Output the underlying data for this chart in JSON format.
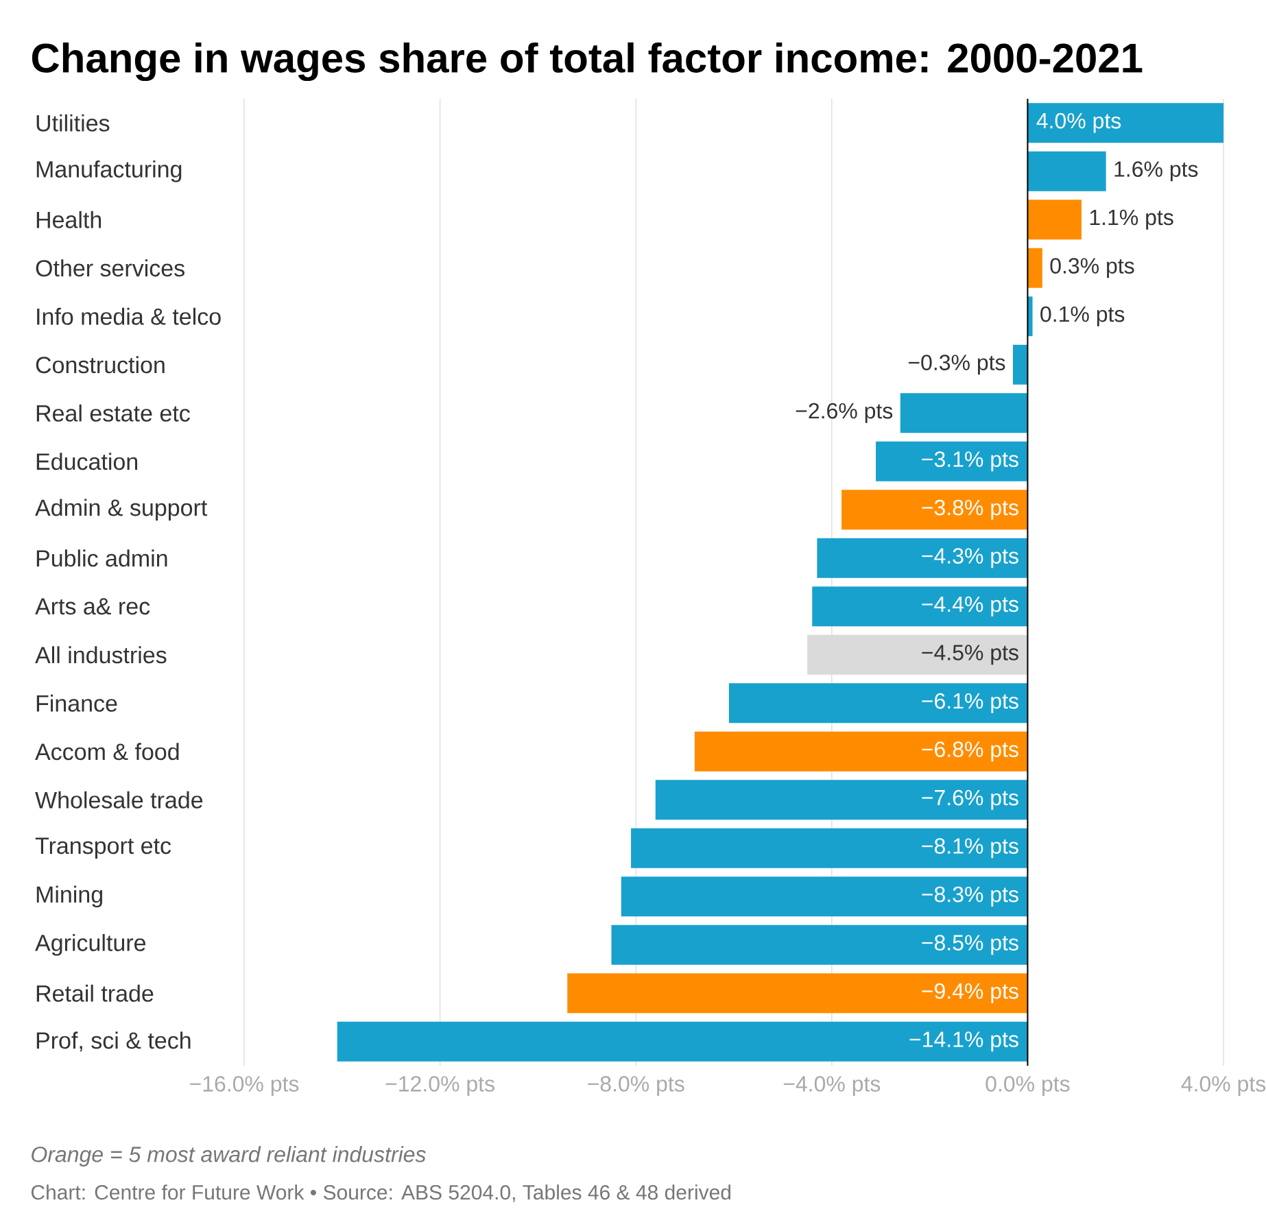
{
  "chart_data": {
    "type": "bar",
    "orientation": "horizontal",
    "title": "Change in wages share of total factor income: 2000-2021",
    "categories": [
      "Utilities",
      "Manufacturing",
      "Health",
      "Other services",
      "Info media & telco",
      "Construction",
      "Real estate etc",
      "Education",
      "Admin & support",
      "Public admin",
      "Arts a& rec",
      "All industries",
      "Finance",
      "Accom & food",
      "Wholesale trade",
      "Transport etc",
      "Mining",
      "Agriculture",
      "Retail trade",
      "Prof, sci & tech"
    ],
    "values": [
      4.0,
      1.6,
      1.1,
      0.3,
      0.1,
      -0.3,
      -2.6,
      -3.1,
      -3.8,
      -4.3,
      -4.4,
      -4.5,
      -6.1,
      -6.8,
      -7.6,
      -8.1,
      -8.3,
      -8.5,
      -9.4,
      -14.1
    ],
    "value_labels": [
      "4.0% pts",
      "1.6% pts",
      "1.1% pts",
      "0.3% pts",
      "0.1% pts",
      "−0.3% pts",
      "−2.6% pts",
      "−3.1% pts",
      "−3.8% pts",
      "−4.3% pts",
      "−4.4% pts",
      "−4.5% pts",
      "−6.1% pts",
      "−6.8% pts",
      "−7.6% pts",
      "−8.1% pts",
      "−8.3% pts",
      "−8.5% pts",
      "−9.4% pts",
      "−14.1% pts"
    ],
    "colors": [
      "#18a1cd",
      "#18a1cd",
      "#ff8c00",
      "#ff8c00",
      "#18a1cd",
      "#18a1cd",
      "#18a1cd",
      "#18a1cd",
      "#ff8c00",
      "#18a1cd",
      "#18a1cd",
      "#dadada",
      "#18a1cd",
      "#ff8c00",
      "#18a1cd",
      "#18a1cd",
      "#18a1cd",
      "#18a1cd",
      "#ff8c00",
      "#18a1cd"
    ],
    "xlim": [
      -16,
      4
    ],
    "xticks": [
      {
        "value": -16,
        "label": "−16.0% pts"
      },
      {
        "value": -12,
        "label": "−12.0% pts"
      },
      {
        "value": -8,
        "label": "−8.0% pts"
      },
      {
        "value": -4,
        "label": "−4.0% pts"
      },
      {
        "value": 0,
        "label": "0.0% pts"
      },
      {
        "value": 4,
        "label": "4.0% pts"
      }
    ],
    "grid": "x",
    "annotations": [
      "Orange = 5 most award reliant industries",
      "Chart: Centre for Future Work • Source: ABS 5204.0, Tables 46 & 48 derived"
    ]
  }
}
